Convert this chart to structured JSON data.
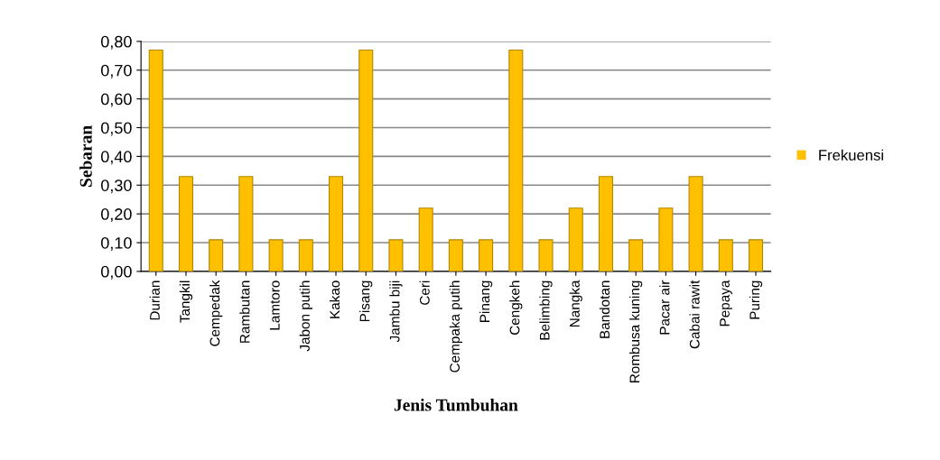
{
  "chart_data": {
    "type": "bar",
    "xlabel": "Jenis Tumbuhan",
    "ylabel": "Sebaran",
    "categories": [
      "Durian",
      "Tangkil",
      "Cempedak",
      "Rambutan",
      "Lamtoro",
      "Jabon putih",
      "Kakao",
      "Pisang",
      "Jambu biji",
      "Ceri",
      "Cempaka putih",
      "Pinang",
      "Cengkeh",
      "Belimbing",
      "Nangka",
      "Bandotan",
      "Rombusa kuning",
      "Pacar air",
      "Cabai rawit",
      "Pepaya",
      "Puring"
    ],
    "series": [
      {
        "name": "Frekuensi",
        "color": "#ffc000",
        "values": [
          0.77,
          0.33,
          0.11,
          0.33,
          0.11,
          0.11,
          0.33,
          0.77,
          0.11,
          0.22,
          0.11,
          0.11,
          0.77,
          0.11,
          0.22,
          0.33,
          0.11,
          0.22,
          0.33,
          0.11,
          0.11
        ]
      }
    ],
    "ylim": [
      0,
      0.8
    ],
    "yticks": [
      {
        "value": 0,
        "label": "0,00"
      },
      {
        "value": 0.1,
        "label": "0,10"
      },
      {
        "value": 0.2,
        "label": "0,20"
      },
      {
        "value": 0.3,
        "label": "0,30"
      },
      {
        "value": 0.4,
        "label": "0,40"
      },
      {
        "value": 0.5,
        "label": "0,50"
      },
      {
        "value": 0.6,
        "label": "0,60"
      },
      {
        "value": 0.7,
        "label": "0,70"
      },
      {
        "value": 0.8,
        "label": "0,80"
      }
    ],
    "grid": "y",
    "legend": "right"
  }
}
